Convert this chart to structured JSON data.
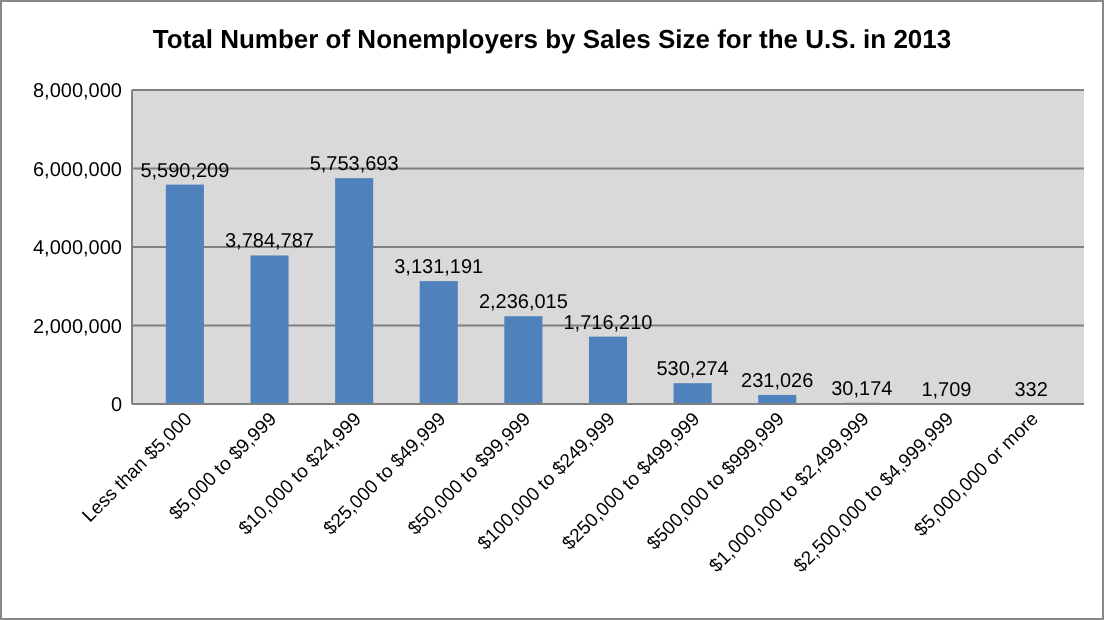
{
  "chart_data": {
    "type": "bar",
    "title": "Total Number of Nonemployers by Sales Size for the U.S. in 2013",
    "categories": [
      "Less than $5,000",
      "$5,000 to $9,999",
      "$10,000 to $24,999",
      "$25,000 to $49,999",
      "$50,000 to $99,999",
      "$100,000 to $249,999",
      "$250,000 to $499,999",
      "$500,000 to $999,999",
      "$1,000,000 to $2,499,999",
      "$2,500,000 to $4,999,999",
      "$5,000,000 or more"
    ],
    "values": [
      5590209,
      3784787,
      5753693,
      3131191,
      2236015,
      1716210,
      530274,
      231026,
      30174,
      1709,
      332
    ],
    "color": "#4f81bd",
    "ylim": [
      0,
      8000000
    ],
    "yticks": [
      {
        "value": 0,
        "label": "0"
      },
      {
        "value": 2000000,
        "label": "2,000,000"
      },
      {
        "value": 4000000,
        "label": "4,000,000"
      },
      {
        "value": 6000000,
        "label": "6,000,000"
      },
      {
        "value": 8000000,
        "label": "8,000,000"
      }
    ],
    "value_labels": [
      "5,590,209",
      "3,784,787",
      "5,753,693",
      "3,131,191",
      "2,236,015",
      "1,716,210",
      "530,274",
      "231,026",
      "30,174",
      "1,709",
      "332"
    ],
    "grid": "y"
  }
}
